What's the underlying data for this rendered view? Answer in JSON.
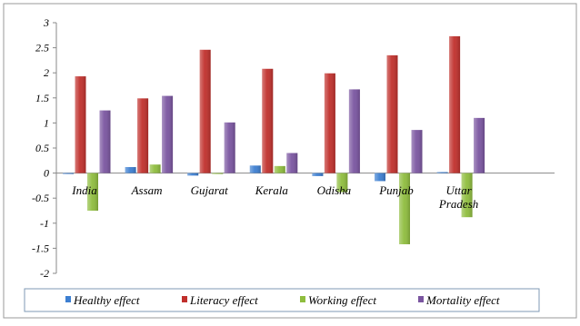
{
  "chart_data": {
    "type": "bar",
    "categories": [
      [
        "India"
      ],
      [
        "Assam"
      ],
      [
        "Gujarat"
      ],
      [
        "Kerala"
      ],
      [
        "Odisha"
      ],
      [
        "Punjab"
      ],
      [
        "Uttar",
        "Pradesh"
      ]
    ],
    "series": [
      {
        "name": "Healthy effect",
        "color": "#3d7fd1",
        "values": [
          0.0,
          0.12,
          -0.05,
          0.15,
          -0.06,
          -0.16,
          0.02
        ]
      },
      {
        "name": "Literacy effect",
        "color": "#c0302c",
        "values": [
          1.93,
          1.49,
          2.46,
          2.08,
          1.99,
          2.35,
          2.73
        ]
      },
      {
        "name": "Working effect",
        "color": "#8fbd3e",
        "values": [
          -0.75,
          0.17,
          0.0,
          0.14,
          -0.38,
          -1.42,
          -0.88
        ]
      },
      {
        "name": "Mortality effect",
        "color": "#7a55a0",
        "values": [
          1.25,
          1.54,
          1.01,
          0.4,
          1.67,
          0.86,
          1.1
        ]
      }
    ],
    "ylim": [
      -2,
      3
    ],
    "y_ticks": [
      "-2",
      "-1.5",
      "-1",
      "-0.5",
      "0",
      "0.5",
      "1",
      "1.5",
      "2",
      "2.5",
      "3"
    ],
    "grid": false,
    "legend_position": "bottom"
  }
}
